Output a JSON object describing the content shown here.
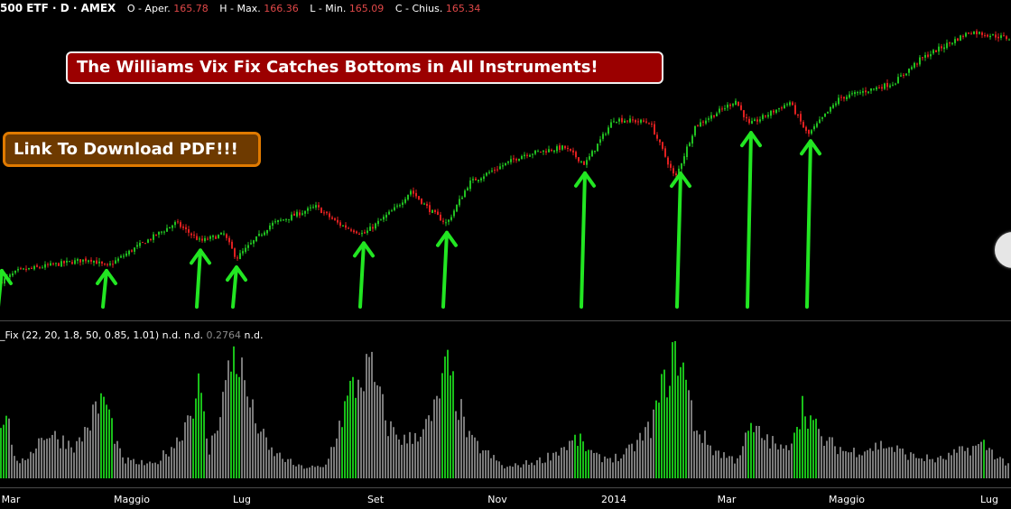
{
  "header": {
    "symbol": "500 ETF",
    "interval": "D",
    "exchange": "AMEX",
    "ohlc": [
      {
        "label": "O - Aper.",
        "value": "165.78"
      },
      {
        "label": "H - Max.",
        "value": "166.36"
      },
      {
        "label": "L - Min.",
        "value": "165.09"
      },
      {
        "label": "C - Chius.",
        "value": "165.34"
      }
    ]
  },
  "banner": {
    "text": "The Williams Vix Fix Catches Bottoms in All Instruments!"
  },
  "pdf_button": {
    "label": "Link To Download PDF!!!"
  },
  "indicator": {
    "name": "_Fix (22, 20, 1.8, 50, 0.85, 1.01)",
    "v1": "n.d.",
    "v2": "n.d.",
    "v3": "0.2764",
    "v4": "n.d."
  },
  "colors": {
    "background": "#000000",
    "up_candle": "#21c021",
    "down_candle": "#e02020",
    "arrow": "#22e622",
    "histogram_normal": "#7a7a7a",
    "histogram_signal": "#19c019",
    "banner_bg": "#9b0000",
    "button_bg": "#6e3a00",
    "button_border": "#e07a00"
  },
  "chart_data": {
    "type": "candlestick",
    "x_tick_labels": [
      "Mar",
      "Maggio",
      "Lug",
      "Set",
      "Nov",
      "2014",
      "Mar",
      "Maggio",
      "Lug"
    ],
    "price_path_approx": [
      [
        0,
        148.8
      ],
      [
        20,
        151.6
      ],
      [
        60,
        153.2
      ],
      [
        100,
        154.6
      ],
      [
        118,
        152.6
      ],
      [
        150,
        157.4
      ],
      [
        195,
        163.6
      ],
      [
        222,
        159.0
      ],
      [
        248,
        160.8
      ],
      [
        262,
        154.8
      ],
      [
        300,
        163.2
      ],
      [
        350,
        167.6
      ],
      [
        376,
        163.2
      ],
      [
        403,
        160.8
      ],
      [
        440,
        167.6
      ],
      [
        455,
        171.6
      ],
      [
        478,
        166.4
      ],
      [
        495,
        163.4
      ],
      [
        520,
        173.6
      ],
      [
        580,
        180.6
      ],
      [
        625,
        182.4
      ],
      [
        648,
        178.2
      ],
      [
        680,
        189.4
      ],
      [
        720,
        188.6
      ],
      [
        748,
        174.6
      ],
      [
        770,
        187.6
      ],
      [
        815,
        194.0
      ],
      [
        830,
        188.0
      ],
      [
        875,
        193.6
      ],
      [
        895,
        185.4
      ],
      [
        930,
        194.6
      ],
      [
        990,
        198.4
      ],
      [
        1020,
        204.4
      ],
      [
        1075,
        211.2
      ],
      [
        1120,
        209.4
      ]
    ],
    "bottoms_marked_x": [
      2,
      118,
      222,
      262,
      403,
      495,
      648,
      754,
      832,
      898
    ],
    "vix_fix_signal_x_ranges": [
      [
        0,
        8
      ],
      [
        110,
        124
      ],
      [
        212,
        228
      ],
      [
        255,
        266
      ],
      [
        378,
        394
      ],
      [
        490,
        502
      ],
      [
        636,
        652
      ],
      [
        726,
        760
      ],
      [
        828,
        836
      ],
      [
        880,
        904
      ],
      [
        1088,
        1092
      ]
    ],
    "vix_fix_spike_points": [
      [
        0,
        0.3
      ],
      [
        5,
        0.55
      ],
      [
        20,
        0.08
      ],
      [
        50,
        0.35
      ],
      [
        85,
        0.25
      ],
      [
        115,
        0.63
      ],
      [
        135,
        0.14
      ],
      [
        170,
        0.1
      ],
      [
        198,
        0.3
      ],
      [
        220,
        0.7
      ],
      [
        232,
        0.2
      ],
      [
        260,
        1.0
      ],
      [
        280,
        0.5
      ],
      [
        298,
        0.22
      ],
      [
        330,
        0.09
      ],
      [
        360,
        0.08
      ],
      [
        388,
        0.66
      ],
      [
        410,
        0.86
      ],
      [
        430,
        0.4
      ],
      [
        450,
        0.28
      ],
      [
        478,
        0.44
      ],
      [
        495,
        0.85
      ],
      [
        520,
        0.3
      ],
      [
        560,
        0.08
      ],
      [
        600,
        0.14
      ],
      [
        640,
        0.3
      ],
      [
        660,
        0.16
      ],
      [
        690,
        0.16
      ],
      [
        720,
        0.38
      ],
      [
        742,
        0.86
      ],
      [
        752,
        1.0
      ],
      [
        770,
        0.4
      ],
      [
        790,
        0.22
      ],
      [
        815,
        0.14
      ],
      [
        832,
        0.38
      ],
      [
        850,
        0.3
      ],
      [
        870,
        0.2
      ],
      [
        890,
        0.57
      ],
      [
        910,
        0.3
      ],
      [
        940,
        0.2
      ],
      [
        980,
        0.26
      ],
      [
        1010,
        0.17
      ],
      [
        1040,
        0.14
      ],
      [
        1070,
        0.22
      ],
      [
        1090,
        0.26
      ],
      [
        1110,
        0.14
      ],
      [
        1120,
        0.1
      ]
    ]
  }
}
